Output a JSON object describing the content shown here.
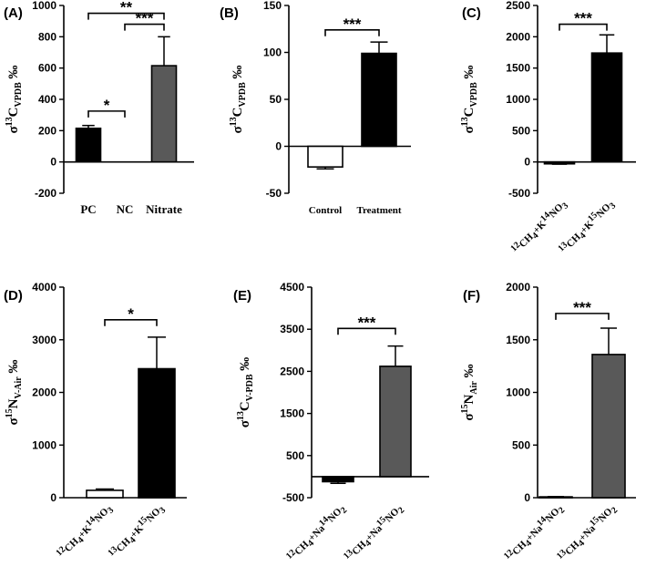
{
  "chart_data": [
    {
      "type": "bar",
      "panel": "(A)",
      "categories": [
        "PC",
        "NC",
        "Nitrate"
      ],
      "values": [
        215,
        0,
        615
      ],
      "errors": [
        18,
        0,
        185
      ],
      "colors": [
        "#000000",
        "#ffffff",
        "#595959"
      ],
      "ylim": [
        -200,
        1000
      ],
      "yticks": [
        -200,
        0,
        200,
        400,
        600,
        800,
        1000
      ],
      "ylabel_prefix": "σ",
      "ylabel_sup": "13",
      "ylabel_main": "C",
      "ylabel_sub": "VPDB",
      "ylabel_suffix": " ‰",
      "significance": [
        {
          "from": 0,
          "to": 1,
          "label": "*",
          "y": 325
        },
        {
          "from": 0,
          "to": 2,
          "label": "**",
          "y": 950
        },
        {
          "from": 1,
          "to": 2,
          "label": "***",
          "y": 880
        }
      ]
    },
    {
      "type": "bar",
      "panel": "(B)",
      "categories": [
        "Control",
        "Treatment"
      ],
      "values": [
        -22,
        99
      ],
      "errors": [
        2,
        12
      ],
      "colors": [
        "#ffffff",
        "#000000"
      ],
      "ylim": [
        -50,
        150
      ],
      "yticks": [
        -50,
        0,
        50,
        100,
        150
      ],
      "ylabel_prefix": "σ",
      "ylabel_sup": "13",
      "ylabel_main": "C",
      "ylabel_sub": "VPDB",
      "ylabel_suffix": " ‰",
      "significance": [
        {
          "from": 0,
          "to": 1,
          "label": "***",
          "y": 124
        }
      ]
    },
    {
      "type": "bar",
      "panel": "(C)",
      "categories": [
        {
          "a": "12",
          "b": "CH",
          "c": "4",
          "d": "+K",
          "e": "14",
          "f": "NO",
          "g": "3"
        },
        {
          "a": "13",
          "b": "CH",
          "c": "4",
          "d": "+K",
          "e": "15",
          "f": "NO",
          "g": "3"
        }
      ],
      "values": [
        -30,
        1740
      ],
      "errors": [
        5,
        290
      ],
      "colors": [
        "#000000",
        "#000000"
      ],
      "ylim": [
        -500,
        2500
      ],
      "yticks": [
        -500,
        0,
        500,
        1000,
        1500,
        2000,
        2500
      ],
      "ylabel_prefix": "σ",
      "ylabel_sup": "13",
      "ylabel_main": "C",
      "ylabel_sub": "VPDB",
      "ylabel_suffix": " ‰",
      "significance": [
        {
          "from": 0,
          "to": 1,
          "label": "***",
          "y": 2200
        }
      ]
    },
    {
      "type": "bar",
      "panel": "(D)",
      "categories": [
        {
          "a": "12",
          "b": "CH",
          "c": "4",
          "d": "+K",
          "e": "14",
          "f": "NO",
          "g": "3"
        },
        {
          "a": "13",
          "b": "CH",
          "c": "4",
          "d": "+K",
          "e": "15",
          "f": "NO",
          "g": "3"
        }
      ],
      "values": [
        140,
        2450
      ],
      "errors": [
        25,
        600
      ],
      "colors": [
        "#ffffff",
        "#000000"
      ],
      "ylim": [
        0,
        4000
      ],
      "yticks": [
        0,
        1000,
        2000,
        3000,
        4000
      ],
      "ylabel_prefix": "σ",
      "ylabel_sup": "15",
      "ylabel_main": "N",
      "ylabel_sub": "V-Air",
      "ylabel_suffix": " ‰",
      "significance": [
        {
          "from": 0,
          "to": 1,
          "label": "*",
          "y": 3380
        }
      ]
    },
    {
      "type": "bar",
      "panel": "(E)",
      "categories": [
        {
          "a": "12",
          "b": "CH",
          "c": "4",
          "d": "+Na",
          "e": "14",
          "f": "NO",
          "g": "2"
        },
        {
          "a": "13",
          "b": "CH",
          "c": "4",
          "d": "+Na",
          "e": "15",
          "f": "NO",
          "g": "2"
        }
      ],
      "values": [
        -120,
        2620
      ],
      "errors": [
        40,
        480
      ],
      "colors": [
        "#000000",
        "#595959"
      ],
      "ylim": [
        -500,
        4500
      ],
      "yticks": [
        -500,
        500,
        1500,
        2500,
        3500,
        4500
      ],
      "ylabel_prefix": "σ",
      "ylabel_sup": "13",
      "ylabel_main": "C",
      "ylabel_sub": "V-PDB",
      "ylabel_suffix": " ‰",
      "significance": [
        {
          "from": 0,
          "to": 1,
          "label": "***",
          "y": 3520
        }
      ]
    },
    {
      "type": "bar",
      "panel": "(F)",
      "categories": [
        {
          "a": "12",
          "b": "CH",
          "c": "4",
          "d": "+Na",
          "e": "14",
          "f": "NO",
          "g": "2"
        },
        {
          "a": "13",
          "b": "CH",
          "c": "4",
          "d": "+Na",
          "e": "15",
          "f": "NO",
          "g": "2"
        }
      ],
      "values": [
        8,
        1360
      ],
      "errors": [
        3,
        250
      ],
      "colors": [
        "#000000",
        "#595959"
      ],
      "ylim": [
        0,
        2000
      ],
      "yticks": [
        0,
        500,
        1000,
        1500,
        2000
      ],
      "ylabel_prefix": "σ",
      "ylabel_sup": "15",
      "ylabel_main": "N",
      "ylabel_sub": "Air",
      "ylabel_suffix": " ‰",
      "significance": [
        {
          "from": 0,
          "to": 1,
          "label": "***",
          "y": 1750
        }
      ]
    }
  ]
}
